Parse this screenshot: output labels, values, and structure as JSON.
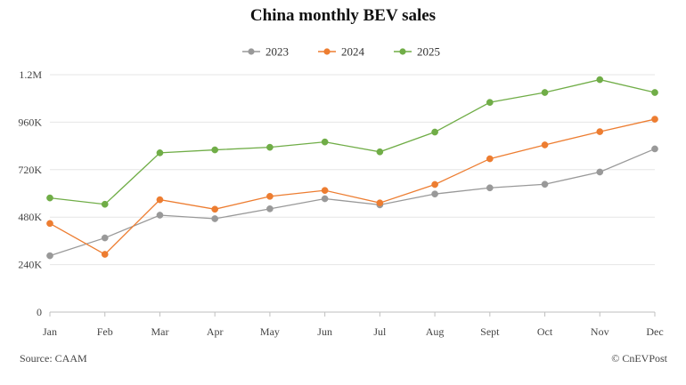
{
  "chart_data": {
    "type": "line",
    "title": "China monthly BEV sales",
    "xlabel": "",
    "ylabel": "",
    "categories": [
      "Jan",
      "Feb",
      "Mar",
      "Apr",
      "May",
      "Jun",
      "Jul",
      "Aug",
      "Sept",
      "Oct",
      "Nov",
      "Dec"
    ],
    "y_ticks": [
      0,
      240000,
      480000,
      720000,
      960000,
      1200000
    ],
    "y_tick_labels": [
      "0",
      "240K",
      "480K",
      "720K",
      "960K",
      "1.2M"
    ],
    "ylim": [
      0,
      1200000
    ],
    "grid": true,
    "legend_position": "top-center",
    "series": [
      {
        "name": "2023",
        "color": "#999999",
        "values": [
          285000,
          375000,
          490000,
          472000,
          522000,
          573000,
          542000,
          597000,
          628000,
          646000,
          708000,
          825000
        ]
      },
      {
        "name": "2024",
        "color": "#ED7D31",
        "values": [
          448000,
          292000,
          568000,
          520000,
          585000,
          615000,
          552000,
          645000,
          775000,
          845000,
          912000,
          975000
        ]
      },
      {
        "name": "2025",
        "color": "#70AD47",
        "values": [
          577000,
          545000,
          805000,
          820000,
          833000,
          860000,
          810000,
          910000,
          1060000,
          1110000,
          1175000,
          1110000
        ]
      }
    ]
  },
  "footer": {
    "source": "Source: CAAM",
    "credit": "© CnEVPost"
  }
}
